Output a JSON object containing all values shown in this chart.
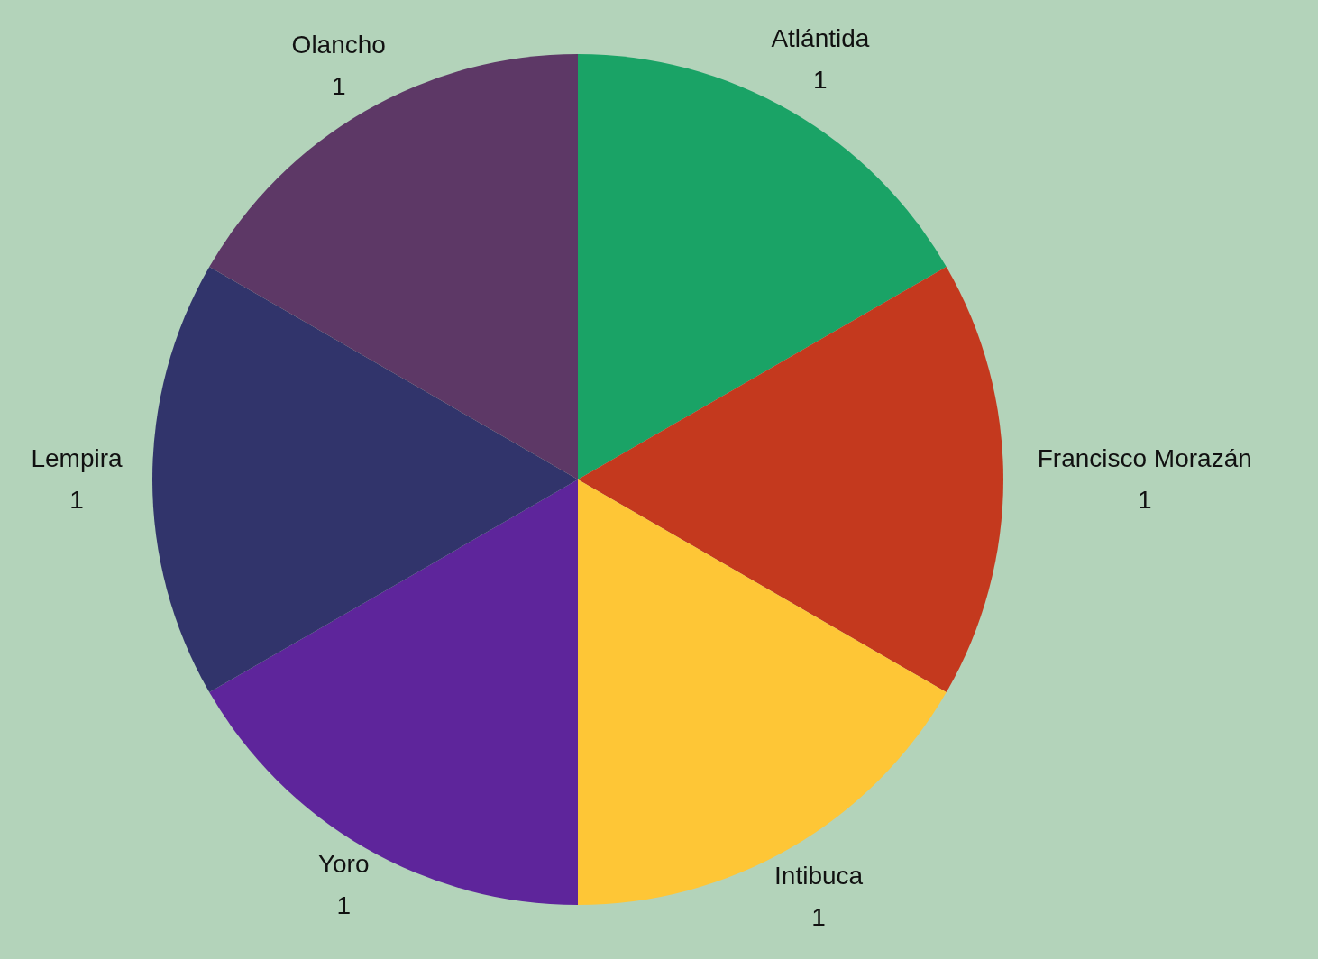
{
  "chart_data": {
    "type": "pie",
    "categories": [
      "Atlántida",
      "Francisco Morazán",
      "Intibuca",
      "Yoro",
      "Lempira",
      "Olancho"
    ],
    "values": [
      1,
      1,
      1,
      1,
      1,
      1
    ],
    "colors": [
      "#1aa366",
      "#c4391e",
      "#fec636",
      "#5e259b",
      "#31346b",
      "#5d3866"
    ],
    "data_labels": true
  }
}
